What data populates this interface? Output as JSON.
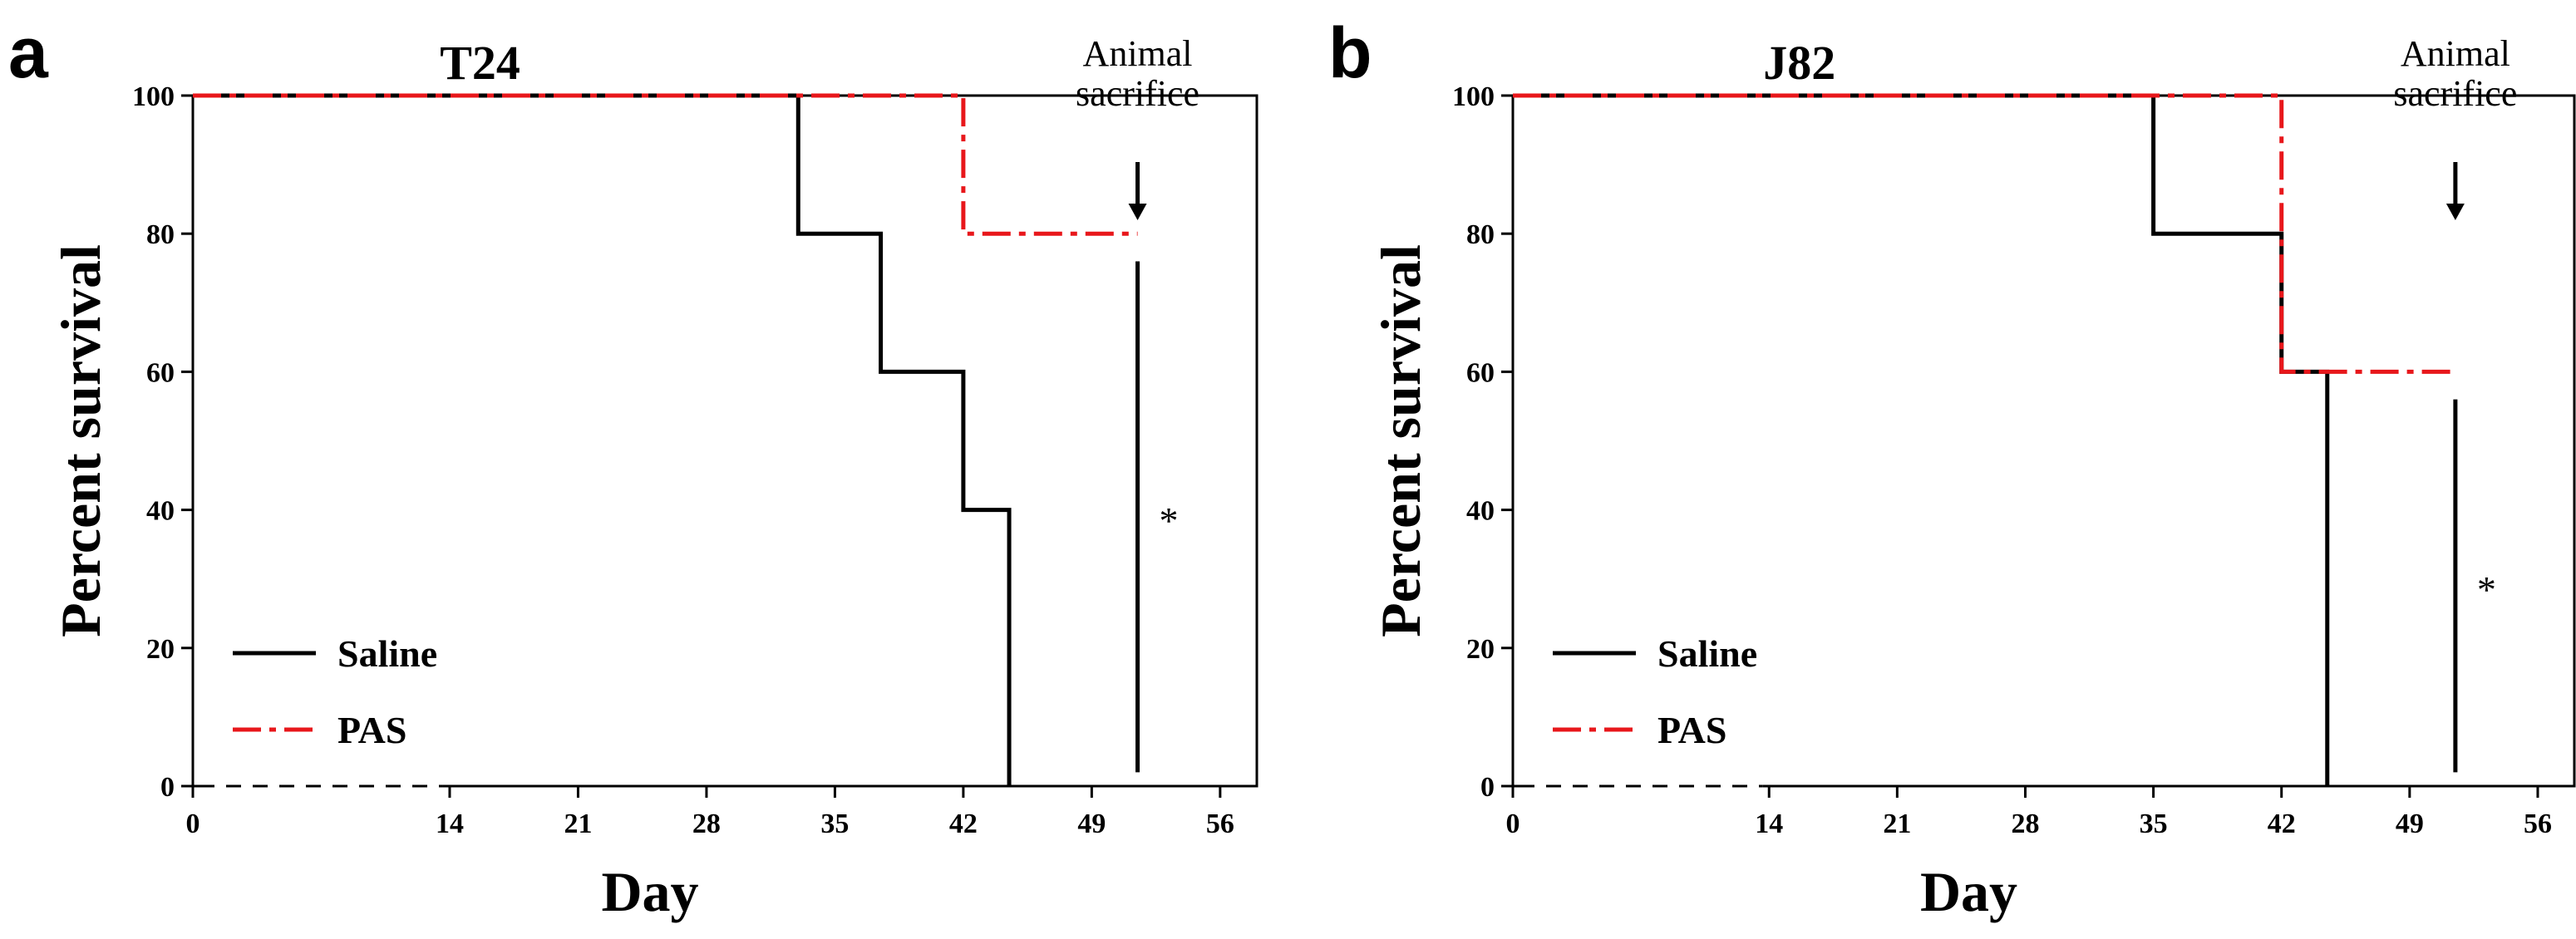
{
  "chart_data": [
    {
      "type": "line",
      "panel_label": "a",
      "title": "T24",
      "xlabel": "Day",
      "ylabel": "Percent survival",
      "xlim": [
        0,
        58
      ],
      "ylim": [
        0,
        100
      ],
      "xticks": [
        0,
        14,
        21,
        28,
        35,
        42,
        49,
        56
      ],
      "yticks": [
        0,
        20,
        40,
        60,
        80,
        100
      ],
      "series": [
        {
          "name": "Saline",
          "color": "#000000",
          "style": "solid",
          "x": [
            0,
            33,
            33,
            37.5,
            37.5,
            42,
            42,
            44.5,
            44.5
          ],
          "y": [
            100,
            100,
            80,
            80,
            60,
            60,
            40,
            40,
            0
          ]
        },
        {
          "name": "PAS",
          "color": "#e8171b",
          "style": "dashed",
          "x": [
            0,
            42,
            42,
            51.5
          ],
          "y": [
            100,
            100,
            80,
            80
          ]
        }
      ],
      "annotation": {
        "text_lines": [
          "Animal",
          "sacrifice"
        ],
        "x": 51.5
      },
      "significance": {
        "text": "*",
        "x": 51.5,
        "y_range": [
          2,
          76
        ]
      },
      "legend": {
        "position": "bottom-left",
        "entries": [
          "Saline",
          "PAS"
        ]
      }
    },
    {
      "type": "line",
      "panel_label": "b",
      "title": "J82",
      "xlabel": "Day",
      "ylabel": "Percent survival",
      "xlim": [
        0,
        58
      ],
      "ylim": [
        0,
        100
      ],
      "xticks": [
        0,
        14,
        21,
        28,
        35,
        42,
        49,
        56
      ],
      "yticks": [
        0,
        20,
        40,
        60,
        80,
        100
      ],
      "series": [
        {
          "name": "Saline",
          "color": "#000000",
          "style": "solid",
          "x": [
            0,
            35,
            35,
            42,
            42,
            44.5,
            44.5
          ],
          "y": [
            100,
            100,
            80,
            80,
            60,
            60,
            0
          ]
        },
        {
          "name": "PAS",
          "color": "#e8171b",
          "style": "dashed",
          "x": [
            0,
            42,
            42,
            51.5
          ],
          "y": [
            100,
            100,
            60,
            60
          ]
        }
      ],
      "annotation": {
        "text_lines": [
          "Animal",
          "sacrifice"
        ],
        "x": 51.5
      },
      "significance": {
        "text": "*",
        "x": 51.5,
        "y_range": [
          2,
          56
        ]
      },
      "legend": {
        "position": "bottom-left",
        "entries": [
          "Saline",
          "PAS"
        ]
      }
    }
  ]
}
